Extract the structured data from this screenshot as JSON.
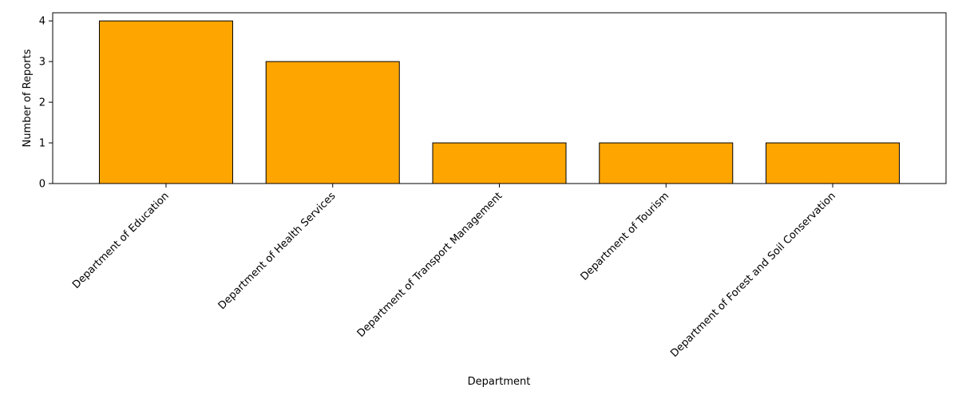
{
  "chart_data": {
    "type": "bar",
    "title": "",
    "xlabel": "Department",
    "ylabel": "Number of Reports",
    "categories": [
      "Department of Education",
      "Department of Health Services",
      "Department of Transport Management",
      "Department of Tourism",
      "Department of Forest and Soil Conservation"
    ],
    "values": [
      4,
      3,
      1,
      1,
      1
    ],
    "ylim": [
      0,
      4.2
    ],
    "yticks": [
      0,
      1,
      2,
      3,
      4
    ],
    "grid": false,
    "legend": "none",
    "colors": {
      "bar_fill": "#FFA500",
      "bar_edge": "#000000",
      "axis": "#000000",
      "background": "#FFFFFF"
    }
  }
}
